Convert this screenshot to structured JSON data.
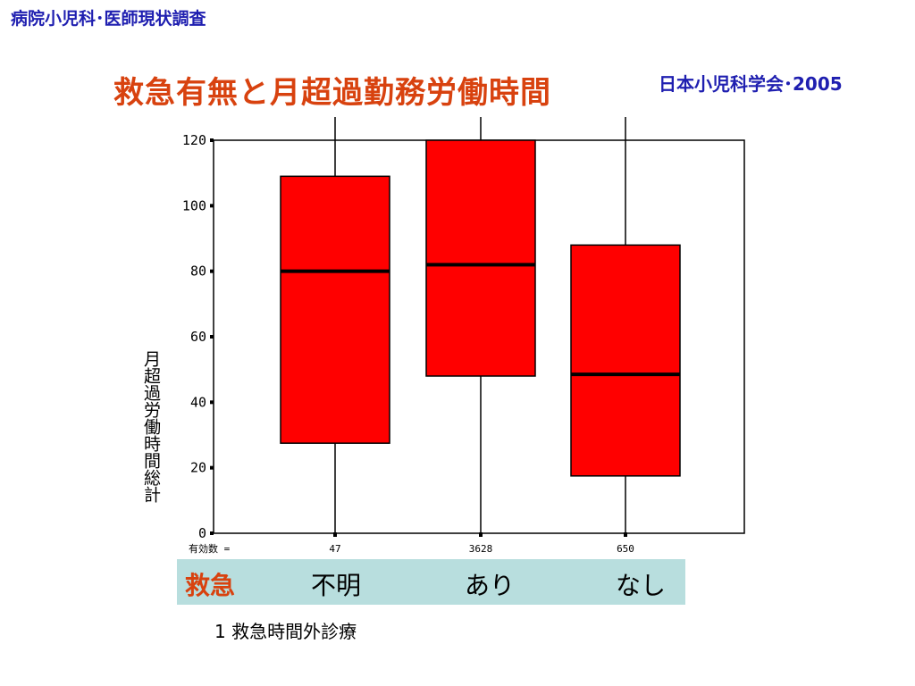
{
  "header": {
    "title": "病院小児科･医師現状調査"
  },
  "society": "日本小児科学会･2005",
  "chart_data": {
    "type": "boxplot",
    "title": "救急有無と月超過勤務労働時間",
    "ylabel": "月超過労働時間総計",
    "ylim": [
      0,
      120
    ],
    "yticks": [
      0,
      20,
      40,
      60,
      80,
      100,
      120
    ],
    "count_prefix": "有効数 =",
    "xaxis_name": "救急",
    "categories": [
      "不明",
      "あり",
      "なし"
    ],
    "boxes": [
      {
        "category": "不明",
        "n": "47",
        "q1": 27.5,
        "median": 80,
        "q3": 109
      },
      {
        "category": "あり",
        "n": "3628",
        "q1": 48,
        "median": 82,
        "q3": 120
      },
      {
        "category": "なし",
        "n": "650",
        "q1": 17.5,
        "median": 48.5,
        "q3": 88
      }
    ],
    "box_color": "#ff0000"
  },
  "footnote": "1 救急時間外診療"
}
